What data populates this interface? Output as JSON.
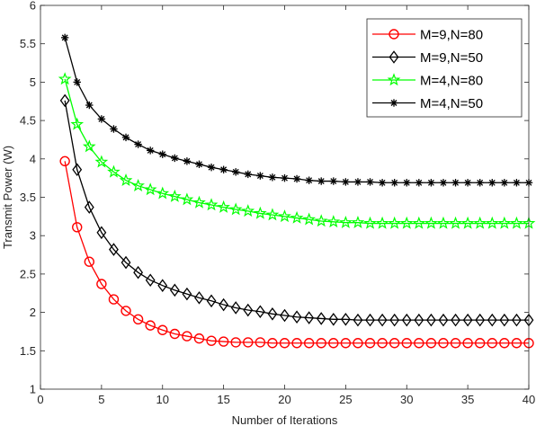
{
  "chart_data": {
    "type": "line",
    "xlabel": "Number of Iterations",
    "ylabel": "Transmit Power (W)",
    "xlim": [
      0,
      40
    ],
    "ylim": [
      1,
      6
    ],
    "xticks": [
      0,
      5,
      10,
      15,
      20,
      25,
      30,
      35,
      40
    ],
    "yticks": [
      1,
      1.5,
      2,
      2.5,
      3,
      3.5,
      4,
      4.5,
      5,
      5.5,
      6
    ],
    "grid": false,
    "legend_position": "top-right",
    "x": [
      2,
      3,
      4,
      5,
      6,
      7,
      8,
      9,
      10,
      11,
      12,
      13,
      14,
      15,
      16,
      17,
      18,
      19,
      20,
      21,
      22,
      23,
      24,
      25,
      26,
      27,
      28,
      29,
      30,
      31,
      32,
      33,
      34,
      35,
      36,
      37,
      38,
      39,
      40
    ],
    "series": [
      {
        "name": "M=9,N=80",
        "color": "#ff0000",
        "marker": "circle",
        "values": [
          3.97,
          3.11,
          2.66,
          2.37,
          2.17,
          2.02,
          1.91,
          1.83,
          1.77,
          1.72,
          1.69,
          1.66,
          1.63,
          1.62,
          1.61,
          1.61,
          1.61,
          1.6,
          1.6,
          1.6,
          1.6,
          1.6,
          1.6,
          1.6,
          1.6,
          1.6,
          1.6,
          1.6,
          1.6,
          1.6,
          1.6,
          1.6,
          1.6,
          1.6,
          1.6,
          1.6,
          1.6,
          1.6,
          1.6
        ]
      },
      {
        "name": "M=9,N=50",
        "color": "#000000",
        "marker": "diamond",
        "values": [
          4.76,
          3.86,
          3.37,
          3.04,
          2.82,
          2.65,
          2.52,
          2.42,
          2.35,
          2.29,
          2.24,
          2.19,
          2.15,
          2.1,
          2.06,
          2.03,
          2.01,
          1.98,
          1.96,
          1.94,
          1.93,
          1.92,
          1.91,
          1.91,
          1.9,
          1.9,
          1.9,
          1.9,
          1.9,
          1.9,
          1.9,
          1.9,
          1.9,
          1.9,
          1.9,
          1.9,
          1.9,
          1.9,
          1.9
        ]
      },
      {
        "name": "M=4,N=80",
        "color": "#00ff00",
        "marker": "star",
        "values": [
          5.04,
          4.45,
          4.16,
          3.96,
          3.83,
          3.72,
          3.65,
          3.6,
          3.55,
          3.51,
          3.47,
          3.43,
          3.4,
          3.37,
          3.34,
          3.32,
          3.29,
          3.27,
          3.25,
          3.23,
          3.21,
          3.19,
          3.18,
          3.17,
          3.17,
          3.16,
          3.16,
          3.16,
          3.16,
          3.16,
          3.16,
          3.16,
          3.16,
          3.16,
          3.16,
          3.16,
          3.16,
          3.16,
          3.16
        ]
      },
      {
        "name": "M=4,N=50",
        "color": "#000000",
        "marker": "asterisk",
        "values": [
          5.58,
          5.0,
          4.7,
          4.52,
          4.39,
          4.28,
          4.19,
          4.11,
          4.06,
          4.01,
          3.97,
          3.93,
          3.89,
          3.86,
          3.83,
          3.8,
          3.78,
          3.76,
          3.75,
          3.74,
          3.72,
          3.71,
          3.71,
          3.7,
          3.7,
          3.7,
          3.69,
          3.69,
          3.69,
          3.69,
          3.69,
          3.69,
          3.69,
          3.69,
          3.69,
          3.69,
          3.69,
          3.69,
          3.69
        ]
      }
    ]
  }
}
